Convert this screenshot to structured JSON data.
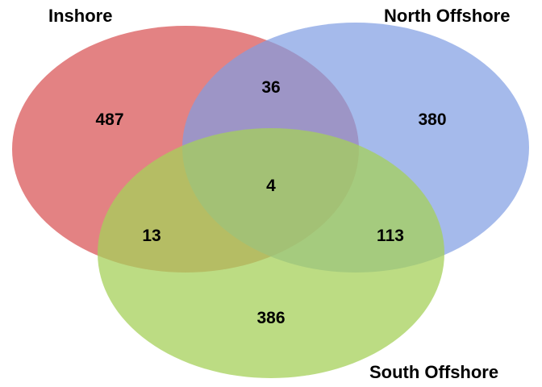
{
  "diagram": {
    "type": "venn",
    "sets": [
      {
        "id": "inshore",
        "label": "Inshore",
        "color": "#d9585a"
      },
      {
        "id": "north_offshore",
        "label": "North Offshore",
        "color": "#7f9ce3"
      },
      {
        "id": "south_offshore",
        "label": "South Offshore",
        "color": "#a5d05a"
      }
    ],
    "regions": {
      "inshore_only": "487",
      "north_offshore_only": "380",
      "south_offshore_only": "386",
      "inshore_north_offshore": "36",
      "inshore_south_offshore": "13",
      "north_offshore_south_offshore": "113",
      "all_three": "4"
    }
  }
}
